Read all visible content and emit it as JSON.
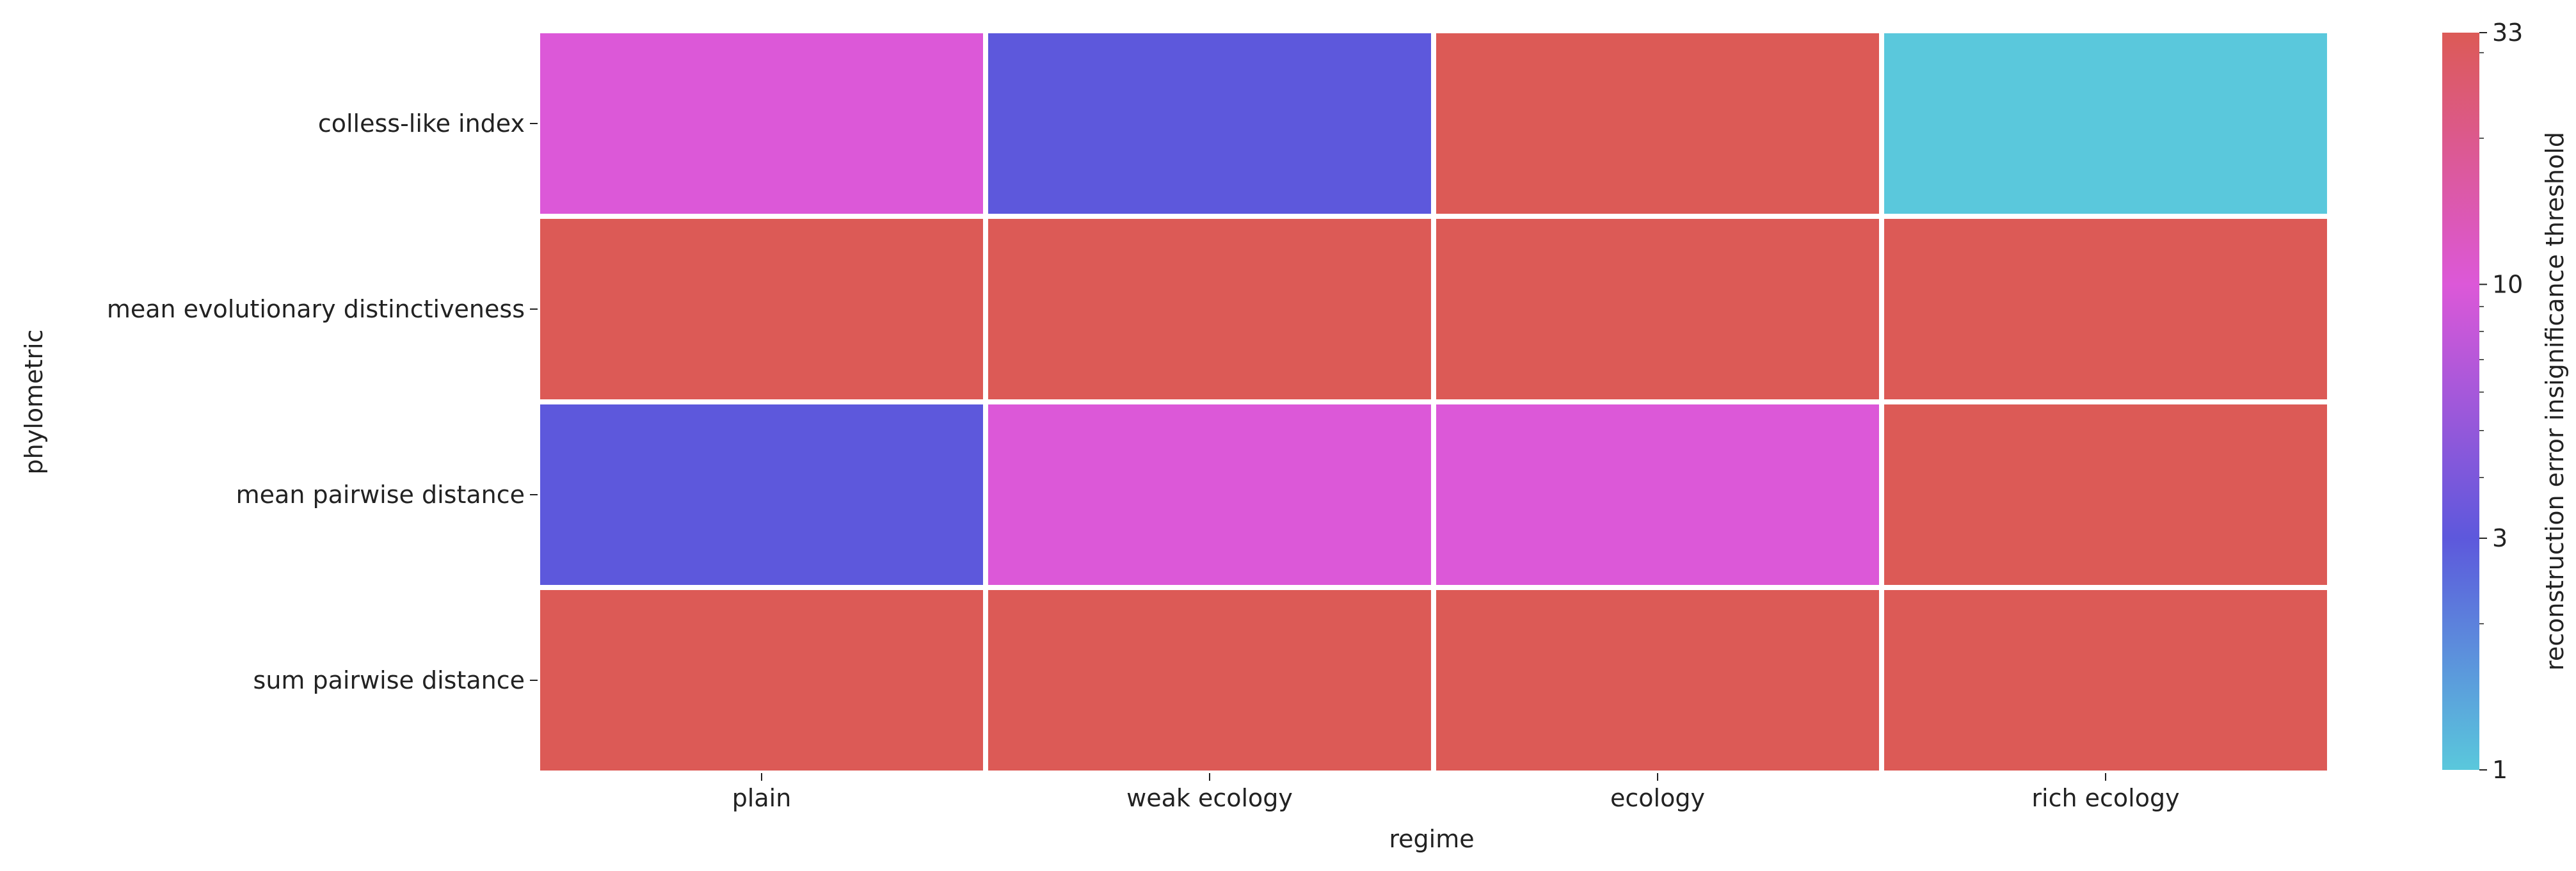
{
  "chart_data": {
    "type": "heatmap",
    "xlabel": "regime",
    "ylabel": "phylometric",
    "x_categories": [
      "plain",
      "weak ecology",
      "ecology",
      "rich ecology"
    ],
    "y_categories": [
      "colless-like index",
      "mean evolutionary distinctiveness",
      "mean pairwise distance",
      "sum pairwise distance"
    ],
    "values": [
      [
        10,
        3,
        33,
        1
      ],
      [
        33,
        33,
        33,
        33
      ],
      [
        3,
        10,
        10,
        33
      ],
      [
        33,
        33,
        33,
        33
      ]
    ],
    "colorbar": {
      "label": "reconstruction error insignificance threshold",
      "scale": "log",
      "range": [
        1,
        33
      ],
      "ticks": [
        1,
        3,
        10,
        33
      ],
      "tick_labels": [
        "1",
        "3",
        "10",
        "33"
      ],
      "colors": {
        "1": "#5ac8dc",
        "3": "#5d58dc",
        "10": "#dc58d8",
        "33": "#dc5a56"
      }
    }
  }
}
